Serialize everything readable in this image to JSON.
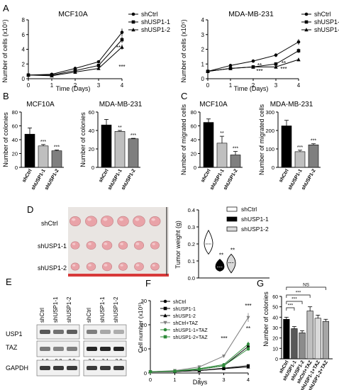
{
  "panels": {
    "A": "A",
    "B": "B",
    "C": "C",
    "D": "D",
    "E": "E",
    "F": "F",
    "G": "G"
  },
  "chart_data": [
    {
      "id": "A1",
      "type": "line",
      "title": "MCF10A",
      "xlabel": "Time (Days)",
      "ylabel": "Number of cells (x10⁵)",
      "x": [
        0,
        1,
        2,
        3,
        4
      ],
      "xlim": [
        0,
        4
      ],
      "ylim": [
        0,
        8
      ],
      "xticks": [
        "0",
        "1",
        "2",
        "3",
        "4"
      ],
      "yticks": [
        "0",
        "2",
        "4",
        "6",
        "8"
      ],
      "legend_position": "right",
      "series": [
        {
          "name": "shCtrl",
          "marker": "circle",
          "values": [
            0.5,
            0.6,
            1.4,
            2.3,
            6.3
          ]
        },
        {
          "name": "shUSP1-1",
          "marker": "square",
          "values": [
            0.5,
            0.5,
            1.1,
            1.8,
            5.3
          ]
        },
        {
          "name": "shUSP1-2",
          "marker": "triangle",
          "values": [
            0.5,
            0.4,
            0.9,
            1.4,
            4.3
          ]
        }
      ],
      "annotations": [
        "**",
        "***"
      ]
    },
    {
      "id": "A2",
      "type": "line",
      "title": "MDA-MB-231",
      "xlabel": "Time (Days)",
      "ylabel": "Number of cells (x10⁵)",
      "x": [
        0,
        1,
        2,
        3,
        4
      ],
      "xlim": [
        0,
        4
      ],
      "ylim": [
        0,
        4
      ],
      "xticks": [
        "0",
        "1",
        "2",
        "3",
        "4"
      ],
      "yticks": [
        "0",
        "1",
        "2",
        "3",
        "4"
      ],
      "legend_position": "right",
      "series": [
        {
          "name": "shCtrl",
          "marker": "circle",
          "values": [
            0.5,
            0.9,
            1.2,
            1.6,
            2.5
          ]
        },
        {
          "name": "shUSP1-1",
          "marker": "square",
          "values": [
            0.5,
            0.7,
            0.8,
            1.0,
            1.9
          ]
        },
        {
          "name": "shUSP1-2",
          "marker": "triangle",
          "values": [
            0.5,
            0.7,
            0.8,
            0.8,
            1.3
          ]
        }
      ],
      "annotations": [
        "**",
        "***",
        "**",
        "***"
      ]
    },
    {
      "id": "B1",
      "type": "bar",
      "title": "MCF10A",
      "ylabel": "Number of colonies",
      "categories": [
        "shCtrl",
        "shUSP1-1",
        "shUSP1-2"
      ],
      "values": [
        48,
        31,
        24
      ],
      "errors": [
        9,
        2,
        1
      ],
      "ylim": [
        0,
        80
      ],
      "yticks": [
        "0",
        "20",
        "40",
        "60",
        "80"
      ],
      "annotations": [
        "",
        "***",
        "***"
      ]
    },
    {
      "id": "B2",
      "type": "bar",
      "title": "MDA-MB-231",
      "ylabel": "Number of colonies",
      "categories": [
        "shCtrl",
        "shUSP1-1",
        "shUSP1-2"
      ],
      "values": [
        46,
        39,
        31
      ],
      "errors": [
        6,
        1,
        0.5
      ],
      "ylim": [
        0,
        60
      ],
      "yticks": [
        "0",
        "20",
        "40",
        "60"
      ],
      "annotations": [
        "",
        "**",
        "***"
      ]
    },
    {
      "id": "C1",
      "type": "bar",
      "title": "MCF10A",
      "ylabel": "Number of migrated cells",
      "categories": [
        "shCtrl",
        "shUSP1-1",
        "shUSP1-2"
      ],
      "values": [
        65,
        35,
        18
      ],
      "errors": [
        5,
        10,
        5
      ],
      "ylim": [
        0,
        80
      ],
      "yticks": [
        "0",
        "20",
        "40",
        "60",
        "80"
      ],
      "annotations": [
        "",
        "**",
        "***"
      ]
    },
    {
      "id": "C2",
      "type": "bar",
      "title": "MDA-MB-231",
      "ylabel": "Number of migrated cells",
      "categories": [
        "shCtrl",
        "shUSP1-1",
        "shUSP1-2"
      ],
      "values": [
        225,
        85,
        122
      ],
      "errors": [
        30,
        8,
        6
      ],
      "ylim": [
        0,
        300
      ],
      "yticks": [
        "0",
        "100",
        "200",
        "300"
      ],
      "annotations": [
        "",
        "***",
        "***"
      ]
    },
    {
      "id": "D",
      "type": "violin",
      "ylabel": "Tumor weight (g)",
      "ylim": [
        0,
        0.4
      ],
      "yticks": [
        "0.0",
        "0.1",
        "0.2",
        "0.3",
        "0.4"
      ],
      "legend_position": "top",
      "series": [
        {
          "name": "shCtrl",
          "color": "#ffffff",
          "median": 0.2,
          "min": 0.14,
          "max": 0.28
        },
        {
          "name": "shUSP1-1",
          "color": "#000000",
          "median": 0.065,
          "min": 0.04,
          "max": 0.11
        },
        {
          "name": "shUSP1-2",
          "color": "#d9d9d9",
          "median": 0.09,
          "min": 0.03,
          "max": 0.14
        }
      ],
      "annotations": [
        "**",
        "**"
      ],
      "photo_rows": [
        "shCtrl",
        "shUSP1-1",
        "shUSP1-2"
      ]
    },
    {
      "id": "E",
      "type": "table",
      "lane_labels": [
        "shCtrl",
        "shUSP1-1",
        "shUSP1-2"
      ],
      "rows": [
        {
          "label": "USP1",
          "left": [
            "1.5",
            "1.1",
            "1.4"
          ],
          "right": [
            "0.9",
            "0.3",
            "0.2"
          ]
        },
        {
          "label": "TAZ",
          "left": [
            "1.0",
            "0.8",
            "0.9"
          ],
          "right": [
            "3.1",
            "3.1",
            "2.9"
          ]
        },
        {
          "label": "GAPDH",
          "left": [],
          "right": []
        }
      ]
    },
    {
      "id": "F",
      "type": "line",
      "xlabel": "Days",
      "ylabel": "Cell number (x10⁵)",
      "x": [
        0,
        1,
        2,
        3,
        4
      ],
      "xlim": [
        0,
        4
      ],
      "ylim": [
        0,
        30
      ],
      "xticks": [
        "0",
        "1",
        "2",
        "3",
        "4"
      ],
      "yticks": [
        "0",
        "10",
        "20",
        "30"
      ],
      "legend_position": "top-left",
      "series": [
        {
          "name": "shCtrl",
          "marker": "circle",
          "color": "#000000",
          "values": [
            0.5,
            0.8,
            1.5,
            3,
            11
          ]
        },
        {
          "name": "shUSP1-1",
          "marker": "square",
          "color": "#000000",
          "values": [
            0.5,
            0.6,
            1,
            2,
            3
          ]
        },
        {
          "name": "shUSP1-2",
          "marker": "triangle",
          "color": "#000000",
          "values": [
            0.5,
            0.6,
            1,
            1.8,
            2.5
          ]
        },
        {
          "name": "shCtrl+TAZ",
          "marker": "triangle-down",
          "color": "#7f7f7f",
          "values": [
            0.5,
            1,
            2.5,
            7,
            23
          ]
        },
        {
          "name": "shUSP1-1+TAZ",
          "marker": "circle",
          "color": "#2e8b3a",
          "values": [
            0.5,
            0.8,
            1.8,
            3.5,
            12
          ]
        },
        {
          "name": "shUSP1-2+TAZ",
          "marker": "square",
          "color": "#2e8b3a",
          "values": [
            0.5,
            0.7,
            1.5,
            3,
            10
          ]
        }
      ],
      "annotations": [
        "***",
        "***",
        "**"
      ]
    },
    {
      "id": "G",
      "type": "bar",
      "ylabel": "Number of colonies",
      "categories": [
        "shCtrl",
        "shUSP1-1",
        "shUSP1-2",
        "shCtrl+TAZ",
        "shUSP1-1+TAZ",
        "shUSP1-2+TAZ"
      ],
      "values": [
        38,
        29,
        25,
        46,
        39,
        36
      ],
      "errors": [
        2,
        2,
        2,
        4,
        3,
        2
      ],
      "ylim": [
        0,
        60
      ],
      "yticks": [
        "0",
        "10",
        "20",
        "30",
        "40",
        "50",
        "60"
      ],
      "annotations": [
        "***",
        "***",
        "***",
        "NS"
      ]
    }
  ]
}
